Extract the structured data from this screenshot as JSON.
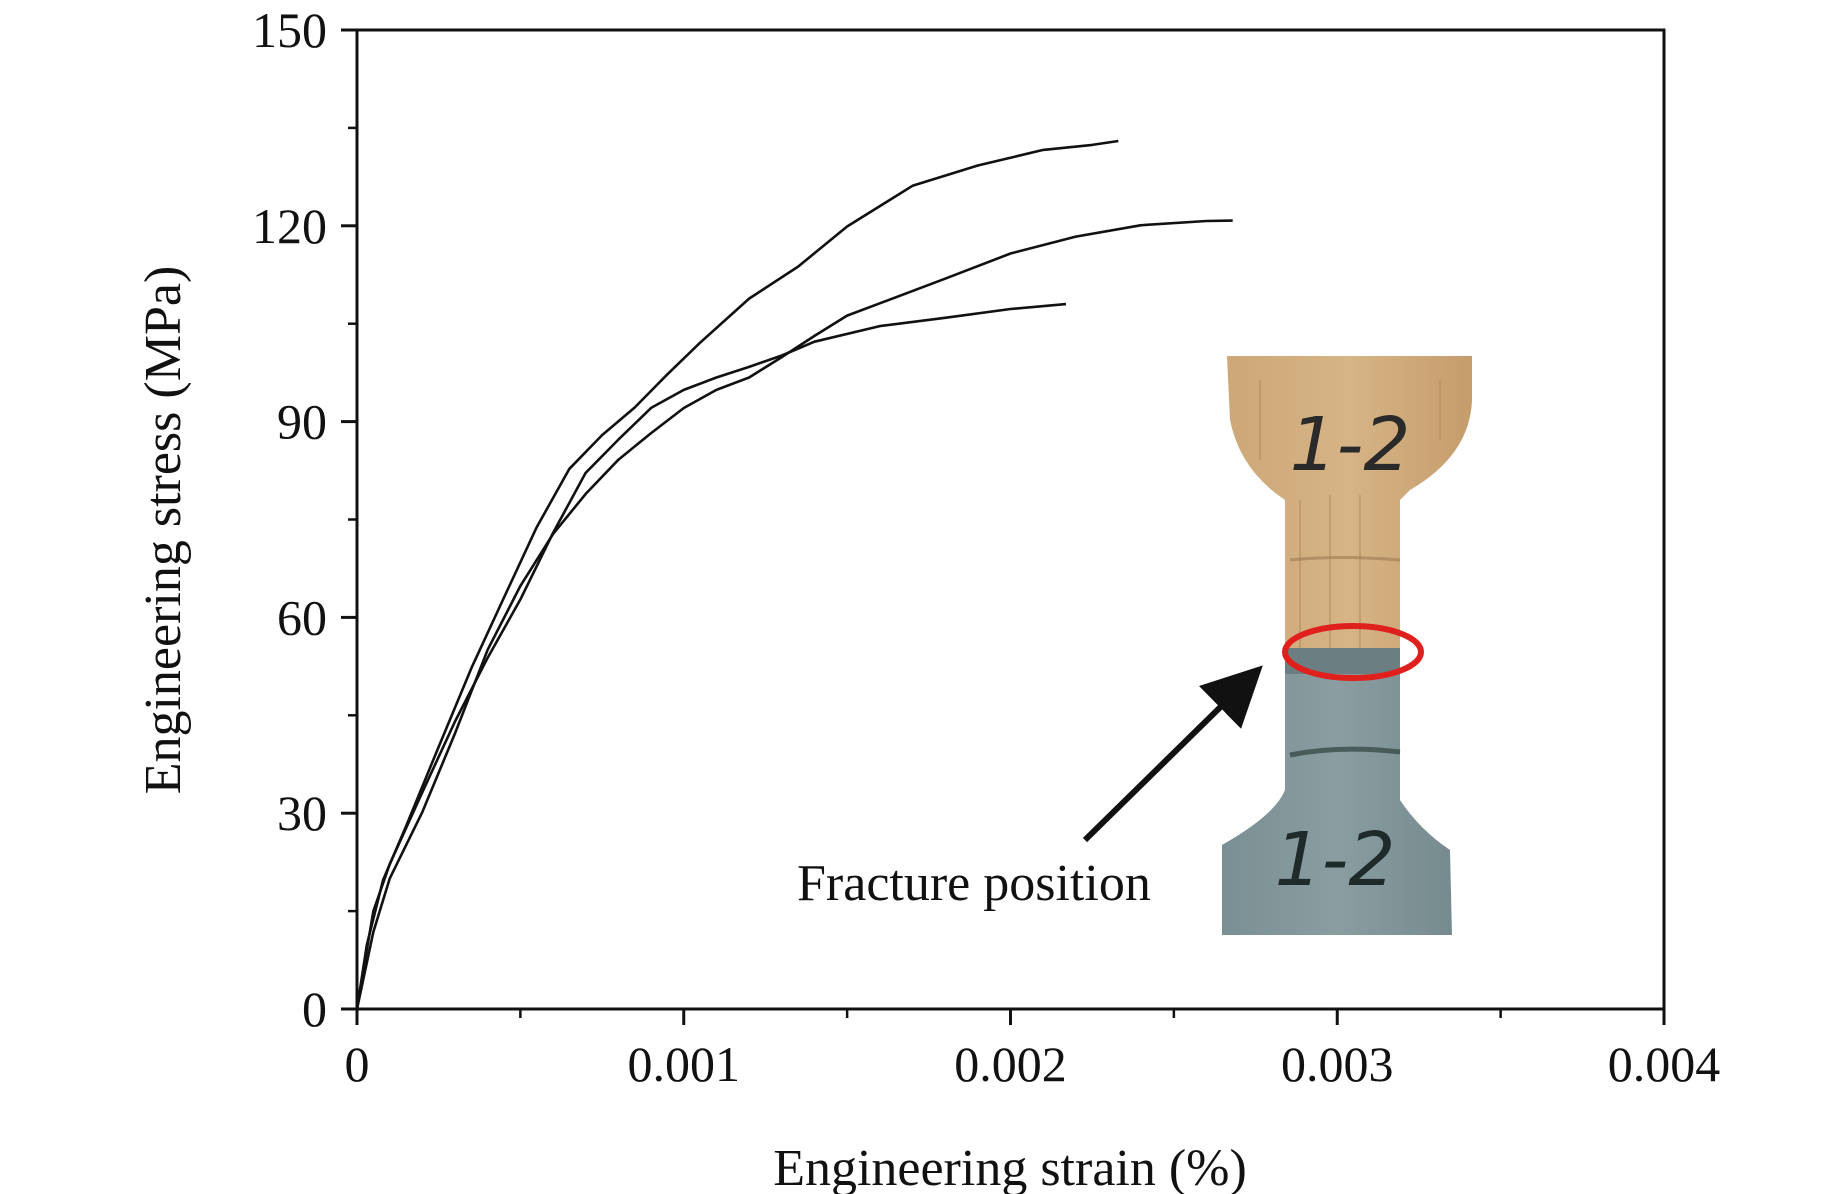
{
  "chart_data": {
    "type": "line",
    "title": "",
    "xlabel": "Engineering strain (%)",
    "ylabel": "Engineering stress (MPa)",
    "xlim": [
      0,
      0.004
    ],
    "ylim": [
      0,
      150
    ],
    "x_ticks": [
      0,
      0.001,
      0.002,
      0.003,
      0.004
    ],
    "x_tick_labels": [
      "0",
      "0.001",
      "0.002",
      "0.003",
      "0.004"
    ],
    "y_ticks": [
      0,
      30,
      60,
      90,
      120,
      150
    ],
    "y_tick_labels": [
      "0",
      "30",
      "60",
      "90",
      "120",
      "150"
    ],
    "grid": false,
    "legend": "none",
    "line_color": "#111111",
    "series": [
      {
        "x": [
          0,
          3e-05,
          8e-05,
          0.00015,
          0.00025,
          0.00035,
          0.00045,
          0.00055,
          0.00065,
          0.00075,
          0.00085,
          0.00095,
          0.00105,
          0.0012,
          0.00135,
          0.0015,
          0.0017,
          0.0019,
          0.0021,
          0.00225,
          0.00233
        ],
        "y": [
          0,
          10,
          20,
          28,
          40,
          52,
          63,
          74,
          83,
          88,
          92,
          97,
          102,
          109,
          114,
          120,
          126,
          129,
          131.5,
          132.5,
          133
        ]
      },
      {
        "x": [
          0,
          5e-05,
          0.0001,
          0.0002,
          0.0003,
          0.0004,
          0.0005,
          0.0006,
          0.0007,
          0.0008,
          0.0009,
          0.001,
          0.0011,
          0.0012,
          0.0013,
          0.0014,
          0.0015,
          0.0016,
          0.0018,
          0.002,
          0.0022,
          0.0024,
          0.0026,
          0.00268
        ],
        "y": [
          0,
          12,
          20,
          30,
          42,
          55,
          65,
          73,
          79,
          84,
          88,
          92,
          95,
          97,
          100,
          103,
          106,
          108,
          112,
          116,
          118.5,
          120,
          120.5,
          120.8
        ]
      },
      {
        "x": [
          0,
          5e-05,
          0.0001,
          0.0002,
          0.0003,
          0.0004,
          0.0005,
          0.0006,
          0.0007,
          0.0008,
          0.0009,
          0.001,
          0.0011,
          0.0012,
          0.0013,
          0.0014,
          0.0016,
          0.0018,
          0.002,
          0.00217
        ],
        "y": [
          0,
          15,
          22,
          33,
          44,
          54,
          63,
          73,
          82,
          87,
          92,
          95,
          97,
          98.5,
          100,
          102,
          104.5,
          106,
          107.5,
          108
        ]
      }
    ],
    "annotations": [
      {
        "text": "Fracture position"
      }
    ],
    "inset": {
      "labels": [
        "1-2",
        "1-2"
      ],
      "colors": {
        "wood": "#c9a171",
        "wood_light": "#d9b98d",
        "coated": "#7f9397",
        "coated_dark": "#6b7f83",
        "marker": "#e0201c",
        "arrow": "#111111"
      }
    }
  }
}
